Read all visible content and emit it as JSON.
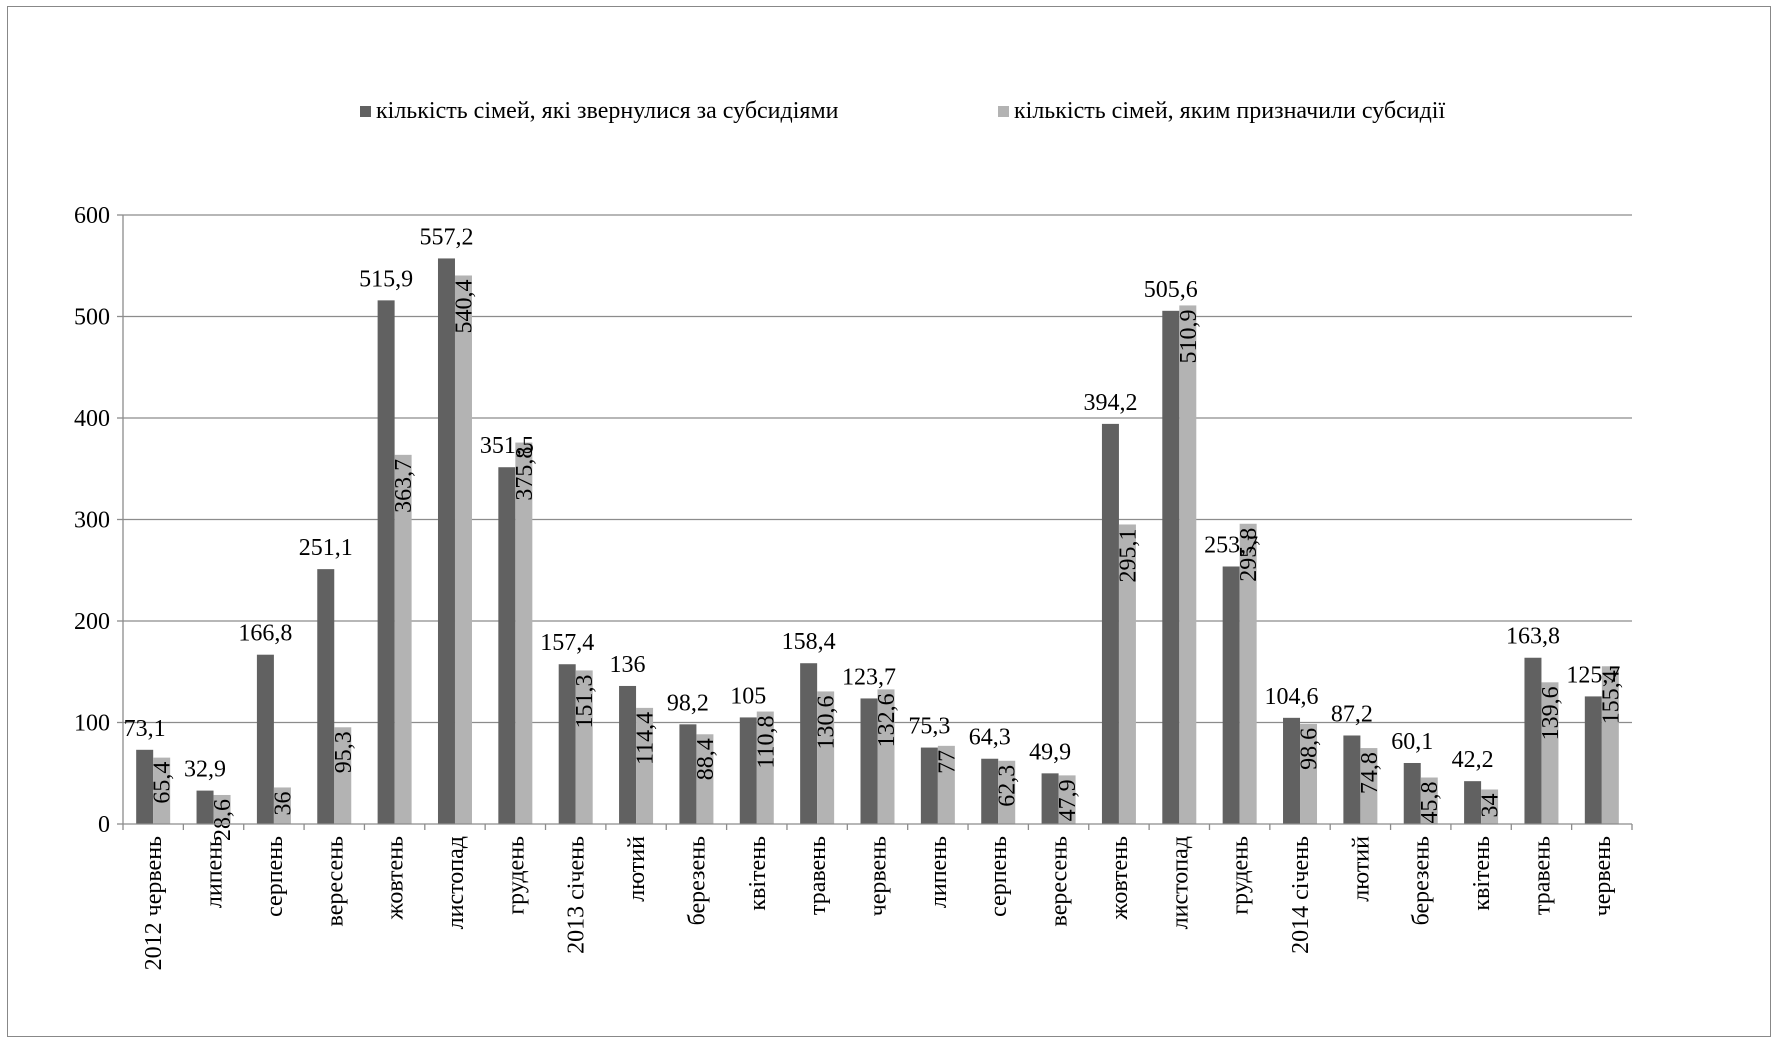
{
  "chart_data": {
    "type": "bar",
    "title": "",
    "xlabel": "",
    "ylabel": "",
    "ylim": [
      0,
      600
    ],
    "yticks": [
      0,
      100,
      200,
      300,
      400,
      500,
      600
    ],
    "grid": true,
    "legend_position": "top",
    "categories": [
      "2012 червень",
      "липень",
      "серпень",
      "вересень",
      "жовтень",
      "листопад",
      "грудень",
      "2013 січень",
      "лютий",
      "березень",
      "квітень",
      "травень",
      "червень",
      "липень",
      "серпень",
      "вересень",
      "жовтень",
      "листопад",
      "грудень",
      "2014 січень",
      "лютий",
      "березень",
      "квітень",
      "травень",
      "червень"
    ],
    "series": [
      {
        "name": "кількість сімей, які звернулися за субсидіями",
        "color": "#616161",
        "values": [
          73.1,
          32.9,
          166.8,
          251.1,
          515.9,
          557.2,
          351.5,
          157.4,
          136,
          98.2,
          105,
          158.4,
          123.7,
          75.3,
          64.3,
          49.9,
          394.2,
          505.6,
          253.7,
          104.6,
          87.2,
          60.1,
          42.2,
          163.8,
          125.7
        ]
      },
      {
        "name": "кількість сімей, яким призначили субсидії",
        "color": "#b3b3b3",
        "values": [
          65.4,
          28.6,
          36,
          95.3,
          363.7,
          540.4,
          375.8,
          151.3,
          114.4,
          88.4,
          110.8,
          130.6,
          132.6,
          77,
          62.3,
          47.9,
          295.1,
          510.9,
          295.8,
          98.6,
          74.8,
          45.8,
          34,
          139.6,
          155.4
        ]
      }
    ],
    "labels_series1": [
      "73,1",
      "32,9",
      "166,8",
      "251,1",
      "515,9",
      "557,2",
      "351,5",
      "157,4",
      "136",
      "98,2",
      "105",
      "158,4",
      "123,7",
      "75,3",
      "64,3",
      "49,9",
      "394,2",
      "505,6",
      "253,7",
      "104,6",
      "87,2",
      "60,1",
      "42,2",
      "163,8",
      "125,7"
    ],
    "labels_series2": [
      "65,4",
      "28,6",
      "36",
      "95,3",
      "363,7",
      "540,4",
      "375,8",
      "151,3",
      "114,4",
      "88,4",
      "110,8",
      "130,6",
      "132,6",
      "77",
      "62,3",
      "47,9",
      "295,1",
      "510,9",
      "295,8",
      "98,6",
      "74,8",
      "45,8",
      "34",
      "139,6",
      "155,4"
    ]
  }
}
